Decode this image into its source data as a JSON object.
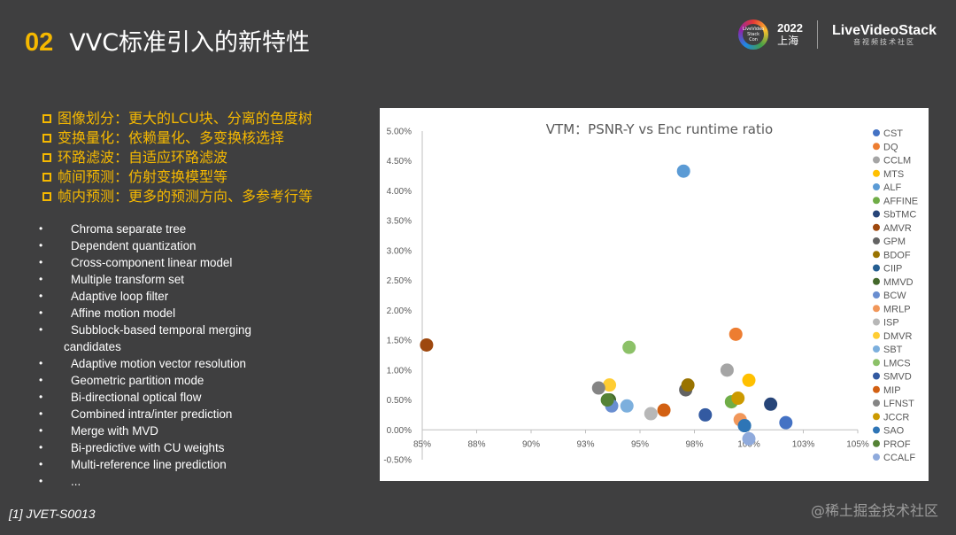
{
  "header": {
    "number": "02",
    "title": "VVC标准引入的新特性"
  },
  "logo": {
    "badge_text": "LiveVideo Stack Con",
    "year": "2022",
    "city": "上海",
    "brand": "LiveVideoStack",
    "brand_sub": "音视频技术社区"
  },
  "features": [
    "图像划分：更大的LCU块、分离的色度树",
    "变换量化：依赖量化、多变换核选择",
    "环路滤波：自适应环路滤波",
    "帧间预测：仿射变换模型等",
    "帧内预测：更多的预测方向、多参考行等"
  ],
  "bullet_mark": "•",
  "bullets": [
    "Chroma separate tree",
    "Dependent quantization",
    "Cross-component linear model",
    "Multiple transform set",
    "Adaptive loop filter",
    "Affine motion model",
    "Subblock-based temporal merging",
    "Adaptive motion vector resolution",
    "Geometric partition mode",
    "Bi-directional optical flow",
    "Combined intra/inter prediction",
    "Merge with MVD",
    "Bi-predictive with CU weights",
    "Multi-reference line prediction",
    "..."
  ],
  "bullet_continuation": "candidates",
  "footnote": "[1] JVET-S0013",
  "watermark": "@稀土掘金技术社区",
  "chart_data": {
    "type": "scatter",
    "title": "VTM：PSNR-Y vs Enc runtime ratio",
    "xlim": [
      0.85,
      1.05
    ],
    "ylim": [
      -0.005,
      0.05
    ],
    "x_ticks": [
      0.85,
      0.875,
      0.9,
      0.925,
      0.95,
      0.975,
      1.0,
      1.025,
      1.05
    ],
    "x_tick_labels": [
      "85%",
      "88%",
      "90%",
      "93%",
      "95%",
      "98%",
      "100%",
      "103%",
      "105%"
    ],
    "y_ticks": [
      -0.005,
      0,
      0.005,
      0.01,
      0.015,
      0.02,
      0.025,
      0.03,
      0.035,
      0.04,
      0.045,
      0.05
    ],
    "y_tick_labels": [
      "-0.50%",
      "0.00%",
      "0.50%",
      "1.00%",
      "1.50%",
      "2.00%",
      "2.50%",
      "3.00%",
      "3.50%",
      "4.00%",
      "4.50%",
      "5.00%"
    ],
    "grid": "none",
    "legend": "right",
    "series": [
      {
        "name": "CST",
        "color": "#4472c4",
        "x": 1.017,
        "y": 0.0012
      },
      {
        "name": "DQ",
        "color": "#ed7d31",
        "x": 0.994,
        "y": 0.016
      },
      {
        "name": "CCLM",
        "color": "#a5a5a5",
        "x": 0.99,
        "y": 0.01
      },
      {
        "name": "MTS",
        "color": "#ffc000",
        "x": 1.0,
        "y": 0.0083
      },
      {
        "name": "ALF",
        "color": "#5b9bd5",
        "x": 0.97,
        "y": 0.0433
      },
      {
        "name": "AFFINE",
        "color": "#70ad47",
        "x": 0.992,
        "y": 0.0047
      },
      {
        "name": "SbTMC",
        "color": "#264478",
        "x": 1.01,
        "y": 0.0043
      },
      {
        "name": "AMVR",
        "color": "#9e480e",
        "x": 0.852,
        "y": 0.0142
      },
      {
        "name": "GPM",
        "color": "#636363",
        "x": 0.971,
        "y": 0.0067
      },
      {
        "name": "BDOF",
        "color": "#997300",
        "x": 0.972,
        "y": 0.0075
      },
      {
        "name": "CIIP",
        "color": "#255e91",
        "x": 0.998,
        "y": 0.0007
      },
      {
        "name": "MMVD",
        "color": "#43682b",
        "x": 0.936,
        "y": 0.005
      },
      {
        "name": "BCW",
        "color": "#698ed0",
        "x": 0.937,
        "y": 0.004
      },
      {
        "name": "MRLP",
        "color": "#f1975a",
        "x": 0.996,
        "y": 0.0017
      },
      {
        "name": "ISP",
        "color": "#b7b7b7",
        "x": 0.955,
        "y": 0.0027
      },
      {
        "name": "DMVR",
        "color": "#ffcd33",
        "x": 0.936,
        "y": 0.0075
      },
      {
        "name": "SBT",
        "color": "#7cafdd",
        "x": 0.944,
        "y": 0.004
      },
      {
        "name": "LMCS",
        "color": "#8cc168",
        "x": 0.945,
        "y": 0.0138
      },
      {
        "name": "SMVD",
        "color": "#335aa1",
        "x": 0.98,
        "y": 0.0025
      },
      {
        "name": "MIP",
        "color": "#d26012",
        "x": 0.961,
        "y": 0.0033
      },
      {
        "name": "LFNST",
        "color": "#848484",
        "x": 0.931,
        "y": 0.007
      },
      {
        "name": "JCCR",
        "color": "#cc9a00",
        "x": 0.995,
        "y": 0.0053
      },
      {
        "name": "SAO",
        "color": "#2e75b6",
        "x": 0.998,
        "y": 0.0007
      },
      {
        "name": "PROF",
        "color": "#548235",
        "x": 0.935,
        "y": 0.005
      },
      {
        "name": "CCALF",
        "color": "#8faadc",
        "x": 1.0,
        "y": -0.0015
      }
    ]
  }
}
